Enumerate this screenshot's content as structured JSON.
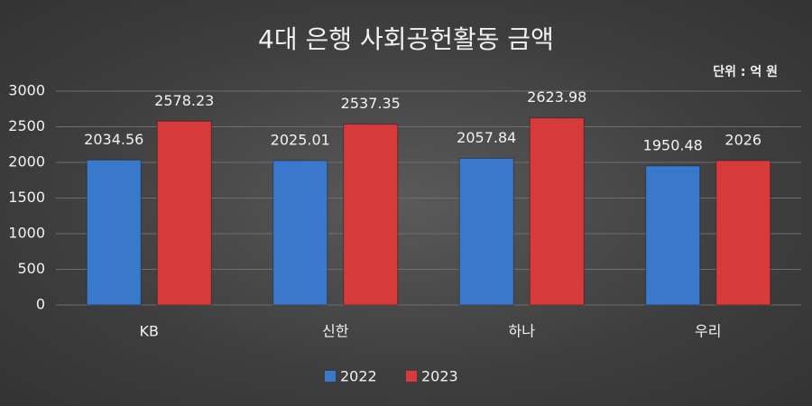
{
  "chart_data": {
    "type": "bar",
    "title": "4대 은행 사회공헌활동 금액",
    "annotation": "단위 : 억 원",
    "categories": [
      "KB",
      "신한",
      "하나",
      "우리"
    ],
    "series": [
      {
        "name": "2022",
        "color": "#3a78cc",
        "values": [
          2034.56,
          2025.01,
          2057.84,
          1950.48
        ]
      },
      {
        "name": "2023",
        "color": "#d63a3a",
        "values": [
          2578.23,
          2537.35,
          2623.98,
          2026
        ]
      }
    ],
    "ylim": [
      0,
      3000
    ],
    "yticks": [
      0,
      500,
      1000,
      1500,
      2000,
      2500,
      3000
    ],
    "grid": true,
    "legend": "bottom"
  }
}
